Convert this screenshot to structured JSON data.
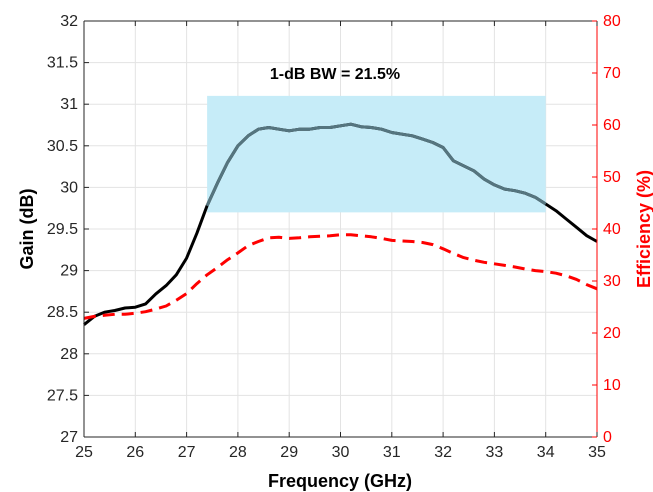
{
  "chart_data": {
    "type": "line",
    "annotation": "1-dB BW = 21.5%",
    "xlabel": "Frequency (GHz)",
    "ylabel_left": "Gain (dB)",
    "ylabel_right": "Efficiency (%)",
    "xlim": [
      25,
      35
    ],
    "ylim_left": [
      27,
      32
    ],
    "ylim_right": [
      0,
      80
    ],
    "x_ticks": [
      "25",
      "26",
      "27",
      "28",
      "29",
      "30",
      "31",
      "32",
      "33",
      "34",
      "35"
    ],
    "y_left_ticks": [
      "27",
      "27.5",
      "28",
      "28.5",
      "29",
      "29.5",
      "30",
      "30.5",
      "31",
      "31.5",
      "32"
    ],
    "y_right_ticks": [
      "0",
      "10",
      "20",
      "30",
      "40",
      "50",
      "60",
      "70",
      "80"
    ],
    "grid": true,
    "colors": {
      "gain": "#000000",
      "efficiency": "#ff0000",
      "bandwidth_region": "#c6ecf8",
      "gain_in_band": "#55757f",
      "right_axis": "#ff0000"
    },
    "bandwidth_region": {
      "x": [
        27.4,
        34.0
      ],
      "y_left": [
        29.7,
        31.1
      ]
    },
    "series": [
      {
        "axis": "left",
        "style": "solid",
        "x": [
          25.0,
          25.2,
          25.4,
          25.6,
          25.8,
          26.0,
          26.2,
          26.4,
          26.6,
          26.8,
          27.0,
          27.2,
          27.4,
          27.6,
          27.8,
          28.0,
          28.2,
          28.4,
          28.6,
          28.8,
          29.0,
          29.2,
          29.4,
          29.6,
          29.8,
          30.0,
          30.2,
          30.4,
          30.6,
          30.8,
          31.0,
          31.2,
          31.4,
          31.6,
          31.8,
          32.0,
          32.2,
          32.4,
          32.6,
          32.8,
          33.0,
          33.2,
          33.4,
          33.6,
          33.8,
          34.0,
          34.2,
          34.4,
          34.6,
          34.8,
          35.0
        ],
        "values": [
          28.35,
          28.45,
          28.5,
          28.52,
          28.55,
          28.56,
          28.6,
          28.72,
          28.82,
          28.95,
          29.15,
          29.45,
          29.78,
          30.05,
          30.3,
          30.5,
          30.62,
          30.7,
          30.72,
          30.7,
          30.68,
          30.7,
          30.7,
          30.72,
          30.72,
          30.74,
          30.76,
          30.73,
          30.72,
          30.7,
          30.66,
          30.64,
          30.62,
          30.58,
          30.54,
          30.48,
          30.32,
          30.26,
          30.2,
          30.1,
          30.03,
          29.98,
          29.96,
          29.93,
          29.88,
          29.8,
          29.72,
          29.62,
          29.52,
          29.42,
          29.35
        ]
      },
      {
        "axis": "right",
        "style": "dashed",
        "x": [
          25.0,
          25.2,
          25.4,
          25.6,
          25.8,
          26.0,
          26.2,
          26.4,
          26.6,
          26.8,
          27.0,
          27.2,
          27.4,
          27.6,
          27.8,
          28.0,
          28.2,
          28.4,
          28.6,
          28.8,
          29.0,
          29.2,
          29.4,
          29.6,
          29.8,
          30.0,
          30.2,
          30.4,
          30.6,
          30.8,
          31.0,
          31.2,
          31.4,
          31.6,
          31.8,
          32.0,
          32.2,
          32.4,
          32.6,
          32.8,
          33.0,
          33.2,
          33.4,
          33.6,
          33.8,
          34.0,
          34.2,
          34.4,
          34.6,
          34.8,
          35.0
        ],
        "values": [
          22.8,
          23.2,
          23.4,
          23.6,
          23.6,
          23.8,
          24.1,
          24.6,
          25.2,
          26.3,
          27.6,
          29.5,
          31.2,
          32.6,
          34.1,
          35.4,
          36.8,
          37.6,
          38.3,
          38.4,
          38.2,
          38.3,
          38.5,
          38.6,
          38.7,
          38.9,
          38.9,
          38.7,
          38.5,
          38.2,
          37.8,
          37.7,
          37.6,
          37.4,
          37.0,
          36.2,
          35.3,
          34.5,
          34.0,
          33.6,
          33.3,
          33.0,
          32.7,
          32.3,
          32.0,
          31.8,
          31.5,
          31.0,
          30.3,
          29.3,
          28.5
        ]
      }
    ]
  }
}
